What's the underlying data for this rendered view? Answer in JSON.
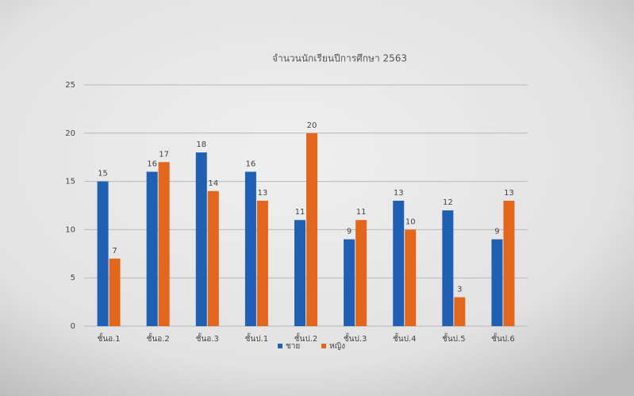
{
  "chart_data": {
    "type": "bar",
    "title": "จำนวนนักเรียนปีการศึกษา 2563",
    "categories": [
      "ชั้นอ.1",
      "ชั้นอ.2",
      "ชั้นอ.3",
      "ชั้นป.1",
      "ชั้นป.2",
      "ชั้นป.3",
      "ชั้นป.4",
      "ชั้นป.5",
      "ชั้นป.6"
    ],
    "series": [
      {
        "name": "ชาย",
        "color": "#1f5fb4",
        "values": [
          15,
          16,
          18,
          16,
          11,
          9,
          13,
          12,
          9
        ]
      },
      {
        "name": "หญิง",
        "color": "#e2661c",
        "values": [
          7,
          17,
          14,
          13,
          20,
          11,
          10,
          3,
          13
        ]
      }
    ],
    "ylim": [
      0,
      25
    ],
    "yticks": [
      0,
      5,
      10,
      15,
      20,
      25
    ],
    "grid": true,
    "legend": "bottom"
  }
}
